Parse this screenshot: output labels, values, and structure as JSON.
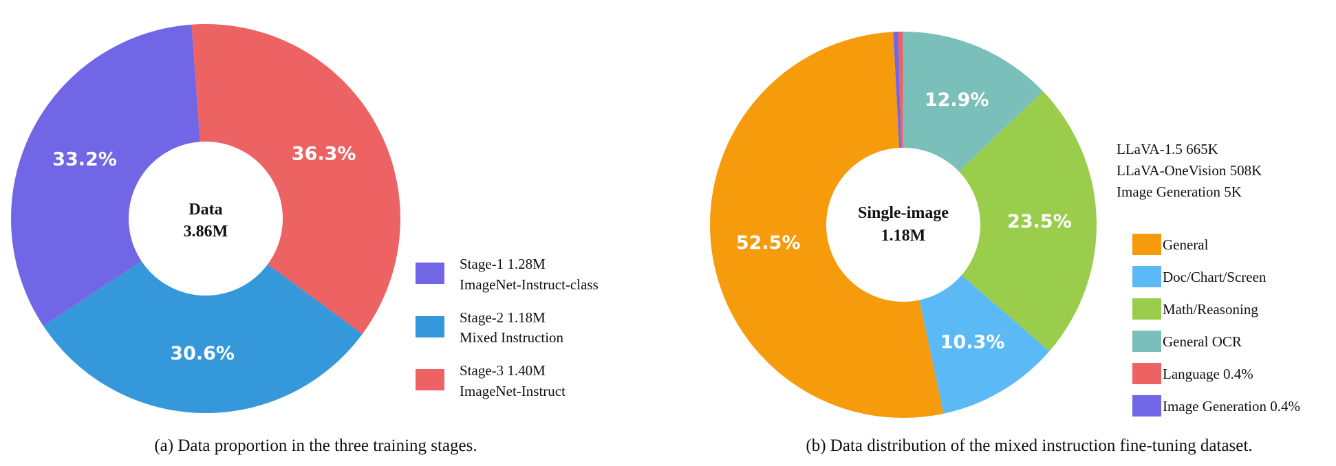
{
  "chart_data": [
    {
      "type": "pie",
      "title": "",
      "center_label": [
        "Data",
        "3.86M"
      ],
      "slices": [
        {
          "label": "Stage-2 1.18M",
          "label2": "Mixed Instruction",
          "value": 30.6,
          "value_label": "30.6%",
          "color": "#3498db"
        },
        {
          "label": "Stage-1 1.28M",
          "label2": "ImageNet-Instruct-class",
          "value": 33.2,
          "value_label": "33.2%",
          "color": "#7166e6"
        },
        {
          "label": "Stage-3 1.40M",
          "label2": "ImageNet-Instruct",
          "value": 36.3,
          "value_label": "36.3%",
          "color": "#ed6262"
        }
      ],
      "legend": [
        {
          "label": "Stage-1 1.28M",
          "label2": "ImageNet-Instruct-class",
          "color": "#7166e6"
        },
        {
          "label": "Stage-2 1.18M",
          "label2": "Mixed Instruction",
          "color": "#3498db"
        },
        {
          "label": "Stage-3 1.40M",
          "label2": "ImageNet-Instruct",
          "color": "#ed6262"
        }
      ],
      "legend_placement": "right",
      "caption": "(a) Data proportion in the three training stages."
    },
    {
      "type": "pie",
      "title": "",
      "center_label": [
        "Single-image",
        "1.18M"
      ],
      "slices": [
        {
          "label": "Image Generation 0.4%",
          "value": 0.4,
          "value_label": "",
          "color": "#7166e6"
        },
        {
          "label": "Language 0.4%",
          "value": 0.4,
          "value_label": "",
          "color": "#ed6262"
        },
        {
          "label": "General OCR",
          "value": 12.9,
          "value_label": "12.9%",
          "color": "#7bbfba"
        },
        {
          "label": "Math/Reasoning",
          "value": 23.5,
          "value_label": "23.5%",
          "color": "#9acd4c"
        },
        {
          "label": "Doc/Chart/Screen",
          "value": 10.3,
          "value_label": "10.3%",
          "color": "#5bbaf6"
        },
        {
          "label": "General",
          "value": 52.5,
          "value_label": "52.5%",
          "color": "#f59b0c"
        }
      ],
      "sources": [
        "LLaVA-1.5 665K",
        "LLaVA-OneVision 508K",
        "Image Generation 5K"
      ],
      "legend": [
        {
          "label": "General",
          "color": "#f59b0c"
        },
        {
          "label": "Doc/Chart/Screen",
          "color": "#5bbaf6"
        },
        {
          "label": "Math/Reasoning",
          "color": "#9acd4c"
        },
        {
          "label": "General OCR",
          "color": "#7bbfba"
        },
        {
          "label": "Language 0.4%",
          "color": "#ed6262"
        },
        {
          "label": "Image Generation 0.4%",
          "color": "#7166e6"
        }
      ],
      "legend_placement": "right",
      "caption": "(b) Data distribution of the mixed instruction fine-tuning dataset."
    }
  ]
}
